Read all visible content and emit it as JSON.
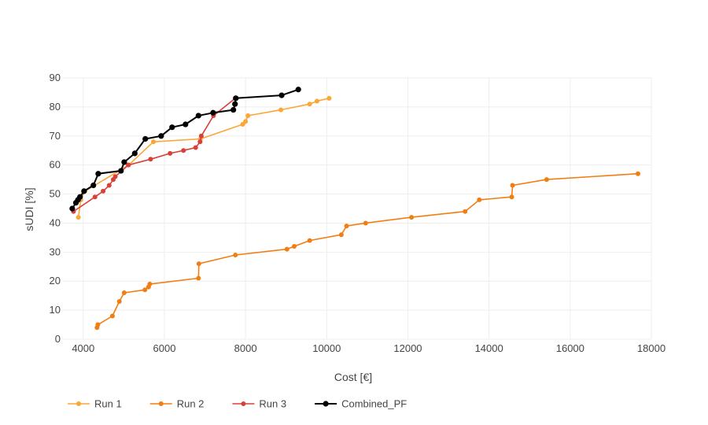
{
  "chart_data": {
    "type": "line",
    "title": "",
    "xlabel": "Cost [€]",
    "ylabel": "sUDI [%]",
    "xlim": [
      3500,
      18000
    ],
    "ylim": [
      0,
      90
    ],
    "xticks": [
      4000,
      6000,
      8000,
      10000,
      12000,
      14000,
      16000,
      18000
    ],
    "yticks": [
      0,
      10,
      20,
      30,
      40,
      50,
      60,
      70,
      80,
      90
    ],
    "grid": true,
    "legend_position": "bottom-left",
    "series": [
      {
        "name": "Run 1",
        "color": "#fba635",
        "x": [
          3880,
          3940,
          4040,
          5120,
          5730,
          6890,
          7930,
          8000,
          8060,
          8870,
          9580,
          9760,
          10060
        ],
        "y": [
          42,
          48,
          51,
          60,
          68,
          69,
          74,
          75,
          77,
          79,
          81,
          82,
          83
        ]
      },
      {
        "name": "Run 2",
        "color": "#f07e12",
        "x": [
          4340,
          4360,
          4720,
          4890,
          5010,
          5520,
          5610,
          5640,
          6840,
          6850,
          7750,
          9020,
          9200,
          9580,
          10360,
          10490,
          10960,
          12090,
          13410,
          13760,
          14560,
          14580,
          15420,
          17670
        ],
        "y": [
          4,
          5,
          8,
          13,
          16,
          17,
          18,
          19,
          21,
          26,
          29,
          31,
          32,
          34,
          36,
          39,
          40,
          42,
          44,
          48,
          49,
          53,
          55,
          57
        ]
      },
      {
        "name": "Run 3",
        "color": "#d8413a",
        "x": [
          3760,
          4290,
          4490,
          4640,
          4740,
          4790,
          5110,
          5660,
          6140,
          6470,
          6770,
          6880,
          6910,
          7210,
          7750
        ],
        "y": [
          44,
          49,
          51,
          53,
          55,
          56,
          60,
          62,
          64,
          65,
          66,
          68,
          70,
          77,
          83
        ]
      },
      {
        "name": "Combined_PF",
        "color": "#000000",
        "x": [
          3730,
          3820,
          3870,
          3920,
          4020,
          4250,
          4370,
          4930,
          5010,
          5270,
          5530,
          5920,
          6190,
          6520,
          6840,
          7200,
          7700,
          7740,
          7760,
          8890,
          9300
        ],
        "y": [
          45,
          47,
          48,
          49,
          51,
          53,
          57,
          58,
          61,
          64,
          69,
          70,
          73,
          74,
          77,
          78,
          79,
          81,
          83,
          84,
          86
        ]
      }
    ]
  }
}
